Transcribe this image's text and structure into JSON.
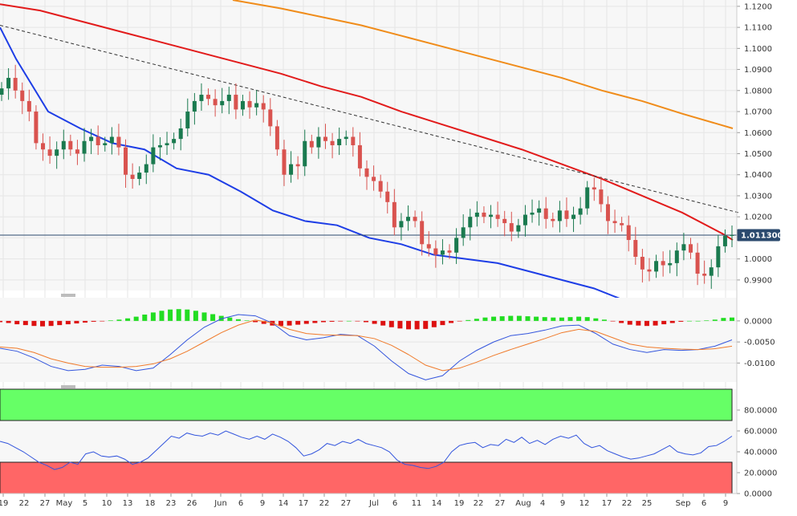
{
  "chart_data": [
    {
      "type": "candlestick",
      "title": "",
      "x_labels": [
        "19",
        "22",
        "27",
        "May",
        "5",
        "10",
        "13",
        "18",
        "23",
        "26",
        "Jun",
        "6",
        "9",
        "14",
        "17",
        "22",
        "27",
        "Jul",
        "6",
        "11",
        "14",
        "19",
        "22",
        "27",
        "Aug",
        "4",
        "9",
        "12",
        "17",
        "22",
        "25",
        "Sep",
        "6",
        "9"
      ],
      "y_ticks": [
        "1.1200",
        "1.1100",
        "1.1000",
        "1.0900",
        "1.0800",
        "1.0700",
        "1.0600",
        "1.0500",
        "1.0400",
        "1.0300",
        "1.0200",
        "1.0100",
        "1.0000",
        "0.9900"
      ],
      "ylim": [
        0.985,
        1.123
      ],
      "last_price_label": "1.011300",
      "last_price": 1.0113,
      "candle_colors": {
        "up": "#1a7a4f",
        "down": "#d9534f"
      },
      "closes": [
        1.081,
        1.086,
        1.08,
        1.075,
        1.07,
        1.055,
        1.052,
        1.049,
        1.052,
        1.056,
        1.052,
        1.05,
        1.056,
        1.058,
        1.054,
        1.055,
        1.058,
        1.053,
        1.04,
        1.038,
        1.041,
        1.045,
        1.053,
        1.054,
        1.055,
        1.057,
        1.062,
        1.07,
        1.075,
        1.078,
        1.076,
        1.073,
        1.075,
        1.078,
        1.071,
        1.075,
        1.072,
        1.074,
        1.071,
        1.063,
        1.052,
        1.04,
        1.045,
        1.044,
        1.056,
        1.053,
        1.058,
        1.056,
        1.054,
        1.057,
        1.058,
        1.054,
        1.043,
        1.039,
        1.037,
        1.032,
        1.027,
        1.015,
        1.018,
        1.02,
        1.018,
        1.007,
        1.005,
        1.002,
        1.004,
        1.003,
        1.01,
        1.015,
        1.02,
        1.022,
        1.02,
        1.021,
        1.019,
        1.017,
        1.013,
        1.016,
        1.021,
        1.022,
        1.024,
        1.019,
        1.018,
        1.023,
        1.019,
        1.021,
        1.024,
        1.034,
        1.033,
        1.026,
        1.018,
        1.017,
        1.016,
        1.009,
        1.001,
        0.995,
        0.994,
        0.999,
        0.997,
        0.998,
        1.004,
        1.007,
        1.003,
        0.993,
        0.992,
        0.996,
        1.006,
        1.011,
        1.0113
      ],
      "moving_averages": [
        {
          "name": "",
          "color": "#1e3ee6",
          "points": [
            [
              0,
              1.11
            ],
            [
              20,
              1.095
            ],
            [
              60,
              1.07
            ],
            [
              100,
              1.062
            ],
            [
              140,
              1.055
            ],
            [
              180,
              1.052
            ],
            [
              220,
              1.043
            ],
            [
              260,
              1.04
            ],
            [
              300,
              1.032
            ],
            [
              340,
              1.023
            ],
            [
              380,
              1.018
            ],
            [
              420,
              1.016
            ],
            [
              460,
              1.01
            ],
            [
              500,
              1.007
            ],
            [
              540,
              1.002
            ],
            [
              580,
              1.0
            ],
            [
              620,
              0.998
            ],
            [
              660,
              0.994
            ],
            [
              700,
              0.99
            ],
            [
              740,
              0.986
            ],
            [
              780,
              0.98
            ],
            [
              820,
              0.975
            ],
            [
              860,
              0.97
            ],
            [
              900,
              0.962
            ],
            [
              913,
              0.96
            ]
          ]
        },
        {
          "name": "",
          "color": "#e21b1b",
          "points": [
            [
              0,
              1.121
            ],
            [
              50,
              1.118
            ],
            [
              100,
              1.113
            ],
            [
              150,
              1.108
            ],
            [
              200,
              1.103
            ],
            [
              250,
              1.098
            ],
            [
              300,
              1.093
            ],
            [
              350,
              1.088
            ],
            [
              400,
              1.082
            ],
            [
              450,
              1.077
            ],
            [
              500,
              1.07
            ],
            [
              550,
              1.064
            ],
            [
              600,
              1.058
            ],
            [
              650,
              1.052
            ],
            [
              700,
              1.045
            ],
            [
              750,
              1.038
            ],
            [
              800,
              1.03
            ],
            [
              850,
              1.022
            ],
            [
              900,
              1.012
            ],
            [
              913,
              1.009
            ]
          ]
        },
        {
          "name": "",
          "color": "#f08c1a",
          "points": [
            [
              290,
              1.123
            ],
            [
              350,
              1.119
            ],
            [
              400,
              1.115
            ],
            [
              450,
              1.111
            ],
            [
              500,
              1.106
            ],
            [
              550,
              1.101
            ],
            [
              600,
              1.096
            ],
            [
              650,
              1.091
            ],
            [
              700,
              1.086
            ],
            [
              750,
              1.08
            ],
            [
              800,
              1.075
            ],
            [
              850,
              1.069
            ],
            [
              913,
              1.062
            ]
          ]
        }
      ],
      "trendline": {
        "from": [
          0,
          1.111
        ],
        "to": [
          920,
          1.022
        ],
        "style": "dashed"
      }
    },
    {
      "type": "histogram+lines",
      "y_ticks": [
        "0.0000",
        "-0.0050",
        "-0.0100"
      ],
      "ylim": [
        -0.0145,
        0.0055
      ],
      "histogram_values": [
        -0.0003,
        -0.0005,
        -0.0008,
        -0.001,
        -0.0012,
        -0.0013,
        -0.0012,
        -0.001,
        -0.0008,
        -0.0006,
        -0.0004,
        -0.0002,
        -0.0001,
        0.0001,
        0.0003,
        0.0006,
        0.001,
        0.0015,
        0.002,
        0.0024,
        0.0027,
        0.0028,
        0.0027,
        0.0024,
        0.002,
        0.0016,
        0.0012,
        0.0008,
        0.0004,
        0.0001,
        -0.0003,
        -0.0007,
        -0.0011,
        -0.0012,
        -0.0011,
        -0.0009,
        -0.0007,
        -0.0005,
        -0.0003,
        -0.0002,
        -0.0001,
        0.0,
        -0.0001,
        -0.0003,
        -0.0007,
        -0.0011,
        -0.0015,
        -0.0018,
        -0.002,
        -0.002,
        -0.0019,
        -0.0015,
        -0.001,
        -0.0005,
        -0.0001,
        0.0002,
        0.0005,
        0.0008,
        0.001,
        0.0011,
        0.0012,
        0.0012,
        0.0011,
        0.001,
        0.0009,
        0.0008,
        0.0008,
        0.0009,
        0.001,
        0.0009,
        0.0006,
        0.0003,
        -0.0001,
        -0.0005,
        -0.0009,
        -0.0011,
        -0.0012,
        -0.0011,
        -0.0008,
        -0.0005,
        -0.0002,
        0.0,
        0.0,
        0.0001,
        0.0003,
        0.0007,
        0.0008
      ],
      "signal_colors": {
        "positive": "#22dd22",
        "negative": "#dd1111"
      },
      "lines": [
        {
          "name": "",
          "color": "#3355dd"
        },
        {
          "name": "",
          "color": "#f07a2a"
        }
      ]
    },
    {
      "type": "oscillator",
      "y_ticks": [
        "80.0000",
        "60.0000",
        "40.0000",
        "20.0000",
        "0.0000"
      ],
      "ylim": [
        0,
        100
      ],
      "overbought_zone": [
        70,
        100
      ],
      "oversold_zone": [
        0,
        30
      ],
      "zone_colors": {
        "overbought": "#66ff66",
        "oversold": "#ff6666"
      },
      "line_color": "#3355dd",
      "values": [
        50,
        48,
        44,
        40,
        35,
        30,
        27,
        23,
        25,
        30,
        28,
        38,
        40,
        36,
        35,
        36,
        33,
        28,
        30,
        34,
        41,
        48,
        55,
        53,
        58,
        56,
        55,
        58,
        56,
        60,
        57,
        54,
        52,
        55,
        52,
        57,
        54,
        50,
        44,
        36,
        38,
        42,
        48,
        46,
        50,
        48,
        52,
        48,
        46,
        44,
        40,
        32,
        28,
        27,
        25,
        24,
        26,
        30,
        40,
        46,
        48,
        49,
        44,
        47,
        46,
        52,
        49,
        54,
        48,
        51,
        47,
        52,
        55,
        53,
        56,
        48,
        44,
        46,
        41,
        38,
        35,
        33,
        34,
        36,
        38,
        42,
        46,
        40,
        38,
        37,
        39,
        45,
        46,
        50,
        55
      ]
    }
  ]
}
